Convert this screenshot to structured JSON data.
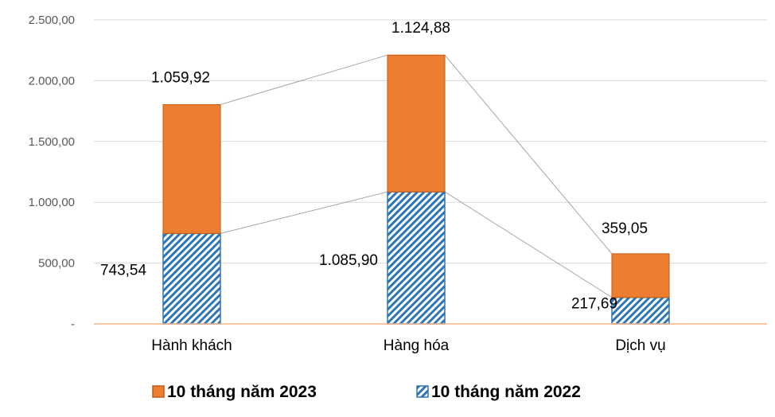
{
  "chart_data": {
    "type": "bar",
    "stacked": true,
    "categories": [
      "Hành khách",
      "Hàng hóa",
      "Dịch vụ"
    ],
    "series": [
      {
        "name": "10 tháng năm 2022",
        "values": [
          743.54,
          1085.9,
          217.69
        ],
        "labels": [
          "743,54",
          "1.085,90",
          "217,69"
        ],
        "color": "#2E75B6",
        "pattern": "diagonal-hatch"
      },
      {
        "name": "10 tháng năm 2023",
        "values": [
          1059.92,
          1124.88,
          359.05
        ],
        "labels": [
          "1.059,92",
          "1.124,88",
          "359,05"
        ],
        "color": "#ED7D31",
        "pattern": "solid"
      }
    ],
    "ylim": [
      0,
      2500
    ],
    "yticks": [
      {
        "value": 0,
        "label": "-"
      },
      {
        "value": 500,
        "label": "500,00"
      },
      {
        "value": 1000,
        "label": "1.000,00"
      },
      {
        "value": 1500,
        "label": "1.500,00"
      },
      {
        "value": 2000,
        "label": "2.000,00"
      },
      {
        "value": 2500,
        "label": "2.500,00"
      }
    ],
    "series_lines": true,
    "grid": true,
    "legend": "bottom"
  }
}
